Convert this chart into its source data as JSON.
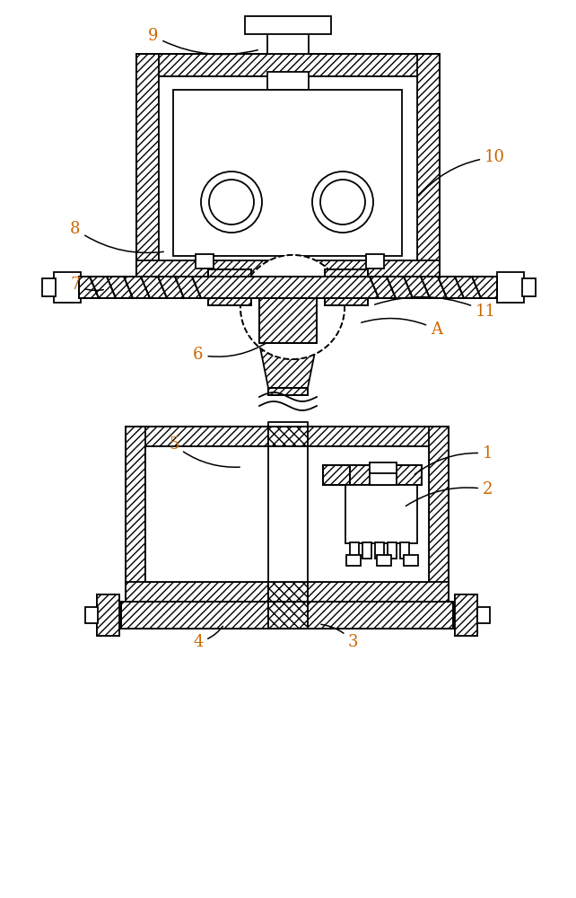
{
  "bg_color": "#ffffff",
  "line_color": "#000000",
  "label_color": "#cc6600",
  "label_fontsize": 13,
  "fig_width": 6.42,
  "fig_height": 10.0
}
